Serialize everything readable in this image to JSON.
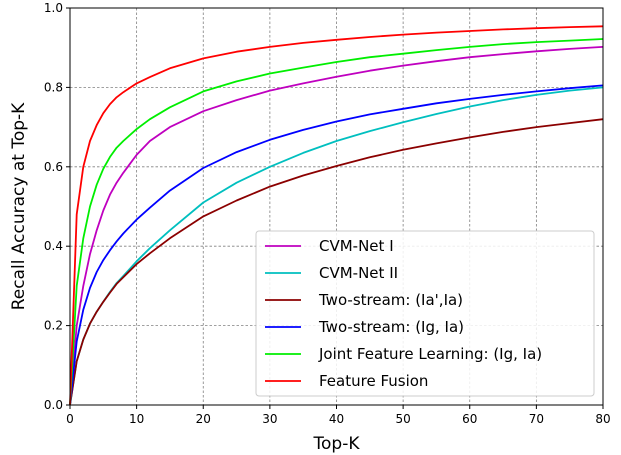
{
  "chart_data": {
    "type": "line",
    "title": "",
    "xlabel": "Top-K",
    "ylabel": "Recall Accuracy at Top-K",
    "xlim": [
      0,
      80
    ],
    "ylim": [
      0,
      1.0
    ],
    "x_ticks": [
      "0",
      "10",
      "20",
      "30",
      "40",
      "50",
      "60",
      "70",
      "80"
    ],
    "y_ticks": [
      "0.0",
      "0.2",
      "0.4",
      "0.6",
      "0.8",
      "1.0"
    ],
    "grid": true,
    "legend_position": "lower-right",
    "series": [
      {
        "name": "CVM-Net I",
        "color": "#bf00bf",
        "x": [
          0,
          1,
          2,
          3,
          4,
          5,
          6,
          7,
          8,
          10,
          12,
          15,
          20,
          25,
          30,
          35,
          40,
          45,
          50,
          55,
          60,
          65,
          70,
          75,
          80
        ],
        "y": [
          0.0,
          0.2,
          0.3,
          0.38,
          0.44,
          0.49,
          0.53,
          0.56,
          0.585,
          0.63,
          0.665,
          0.7,
          0.74,
          0.768,
          0.792,
          0.81,
          0.827,
          0.842,
          0.855,
          0.866,
          0.876,
          0.884,
          0.891,
          0.897,
          0.902
        ]
      },
      {
        "name": "CVM-Net II",
        "color": "#00bfbf",
        "x": [
          0,
          1,
          2,
          3,
          4,
          5,
          6,
          7,
          8,
          10,
          12,
          15,
          20,
          25,
          30,
          35,
          40,
          45,
          50,
          55,
          60,
          65,
          70,
          75,
          80
        ],
        "y": [
          0.0,
          0.11,
          0.165,
          0.205,
          0.235,
          0.26,
          0.285,
          0.307,
          0.325,
          0.362,
          0.395,
          0.44,
          0.51,
          0.56,
          0.6,
          0.635,
          0.665,
          0.69,
          0.712,
          0.733,
          0.752,
          0.768,
          0.781,
          0.792,
          0.8
        ]
      },
      {
        "name": "Two-stream: (Ia',Ia)",
        "color": "#8b0000",
        "x": [
          0,
          1,
          2,
          3,
          4,
          5,
          6,
          7,
          8,
          10,
          12,
          15,
          20,
          25,
          30,
          35,
          40,
          45,
          50,
          55,
          60,
          65,
          70,
          75,
          80
        ],
        "y": [
          0.0,
          0.11,
          0.165,
          0.205,
          0.235,
          0.26,
          0.283,
          0.305,
          0.322,
          0.355,
          0.382,
          0.42,
          0.475,
          0.515,
          0.55,
          0.578,
          0.602,
          0.624,
          0.643,
          0.659,
          0.674,
          0.688,
          0.7,
          0.71,
          0.72
        ]
      },
      {
        "name": "Two-stream: (Ig, Ia)",
        "color": "#0000ff",
        "x": [
          0,
          1,
          2,
          3,
          4,
          5,
          6,
          7,
          8,
          10,
          12,
          15,
          20,
          25,
          30,
          35,
          40,
          45,
          50,
          55,
          60,
          65,
          70,
          75,
          80
        ],
        "y": [
          0.0,
          0.16,
          0.24,
          0.295,
          0.335,
          0.365,
          0.39,
          0.412,
          0.432,
          0.467,
          0.497,
          0.54,
          0.597,
          0.637,
          0.668,
          0.693,
          0.714,
          0.732,
          0.746,
          0.76,
          0.771,
          0.781,
          0.79,
          0.798,
          0.805
        ]
      },
      {
        "name": "Joint Feature Learning: (Ig, Ia)",
        "color": "#00ee00",
        "x": [
          0,
          1,
          2,
          3,
          4,
          5,
          6,
          7,
          8,
          10,
          12,
          15,
          20,
          25,
          30,
          35,
          40,
          45,
          50,
          55,
          60,
          65,
          70,
          75,
          80
        ],
        "y": [
          0.0,
          0.3,
          0.42,
          0.5,
          0.555,
          0.595,
          0.625,
          0.648,
          0.665,
          0.695,
          0.72,
          0.75,
          0.79,
          0.815,
          0.835,
          0.85,
          0.864,
          0.876,
          0.885,
          0.894,
          0.902,
          0.909,
          0.914,
          0.918,
          0.922
        ]
      },
      {
        "name": "Feature Fusion",
        "color": "#ff0000",
        "x": [
          0,
          1,
          2,
          3,
          4,
          5,
          6,
          7,
          8,
          10,
          12,
          15,
          20,
          25,
          30,
          35,
          40,
          45,
          50,
          55,
          60,
          65,
          70,
          75,
          80
        ],
        "y": [
          0.0,
          0.48,
          0.6,
          0.665,
          0.705,
          0.735,
          0.758,
          0.775,
          0.788,
          0.81,
          0.826,
          0.848,
          0.873,
          0.89,
          0.902,
          0.912,
          0.92,
          0.927,
          0.933,
          0.938,
          0.942,
          0.946,
          0.949,
          0.952,
          0.954
        ]
      }
    ]
  }
}
